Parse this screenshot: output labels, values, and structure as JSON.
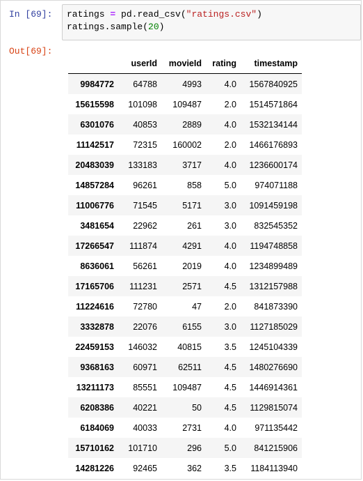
{
  "cell": {
    "in_prompt": "In [69]:",
    "out_prompt": "Out[69]:",
    "code": {
      "line1": {
        "var": "ratings ",
        "op": "=",
        "call": " pd.read_csv(",
        "str": "\"ratings.csv\"",
        "close": ")"
      },
      "line2": {
        "call": "ratings.sample(",
        "num": "20",
        "close": ")"
      }
    }
  },
  "table": {
    "columns": [
      "userId",
      "movieId",
      "rating",
      "timestamp"
    ],
    "rows": [
      {
        "index": "9984772",
        "cells": [
          "64788",
          "4993",
          "4.0",
          "1567840925"
        ]
      },
      {
        "index": "15615598",
        "cells": [
          "101098",
          "109487",
          "2.0",
          "1514571864"
        ]
      },
      {
        "index": "6301076",
        "cells": [
          "40853",
          "2889",
          "4.0",
          "1532134144"
        ]
      },
      {
        "index": "11142517",
        "cells": [
          "72315",
          "160002",
          "2.0",
          "1466176893"
        ]
      },
      {
        "index": "20483039",
        "cells": [
          "133183",
          "3717",
          "4.0",
          "1236600174"
        ]
      },
      {
        "index": "14857284",
        "cells": [
          "96261",
          "858",
          "5.0",
          "974071188"
        ]
      },
      {
        "index": "11006776",
        "cells": [
          "71545",
          "5171",
          "3.0",
          "1091459198"
        ]
      },
      {
        "index": "3481654",
        "cells": [
          "22962",
          "261",
          "3.0",
          "832545352"
        ]
      },
      {
        "index": "17266547",
        "cells": [
          "111874",
          "4291",
          "4.0",
          "1194748858"
        ]
      },
      {
        "index": "8636061",
        "cells": [
          "56261",
          "2019",
          "4.0",
          "1234899489"
        ]
      },
      {
        "index": "17165706",
        "cells": [
          "111231",
          "2571",
          "4.5",
          "1312157988"
        ]
      },
      {
        "index": "11224616",
        "cells": [
          "72780",
          "47",
          "2.0",
          "841873390"
        ]
      },
      {
        "index": "3332878",
        "cells": [
          "22076",
          "6155",
          "3.0",
          "1127185029"
        ]
      },
      {
        "index": "22459153",
        "cells": [
          "146032",
          "40815",
          "3.5",
          "1245104339"
        ]
      },
      {
        "index": "9368163",
        "cells": [
          "60971",
          "62511",
          "4.5",
          "1480276690"
        ]
      },
      {
        "index": "13211173",
        "cells": [
          "85551",
          "109487",
          "4.5",
          "1446914361"
        ]
      },
      {
        "index": "6208386",
        "cells": [
          "40221",
          "50",
          "4.5",
          "1129815074"
        ]
      },
      {
        "index": "6184069",
        "cells": [
          "40033",
          "2731",
          "4.0",
          "971135442"
        ]
      },
      {
        "index": "15710162",
        "cells": [
          "101710",
          "296",
          "5.0",
          "841215906"
        ]
      },
      {
        "index": "14281226",
        "cells": [
          "92465",
          "362",
          "3.5",
          "1184113940"
        ]
      }
    ]
  },
  "colors": {
    "in_prompt": "#303f9f",
    "out_prompt": "#d84315",
    "code_bg": "#f7f7f7",
    "string": "#ba2121",
    "number": "#008000",
    "operator": "#aa22ff",
    "row_stripe": "#f5f5f5"
  }
}
